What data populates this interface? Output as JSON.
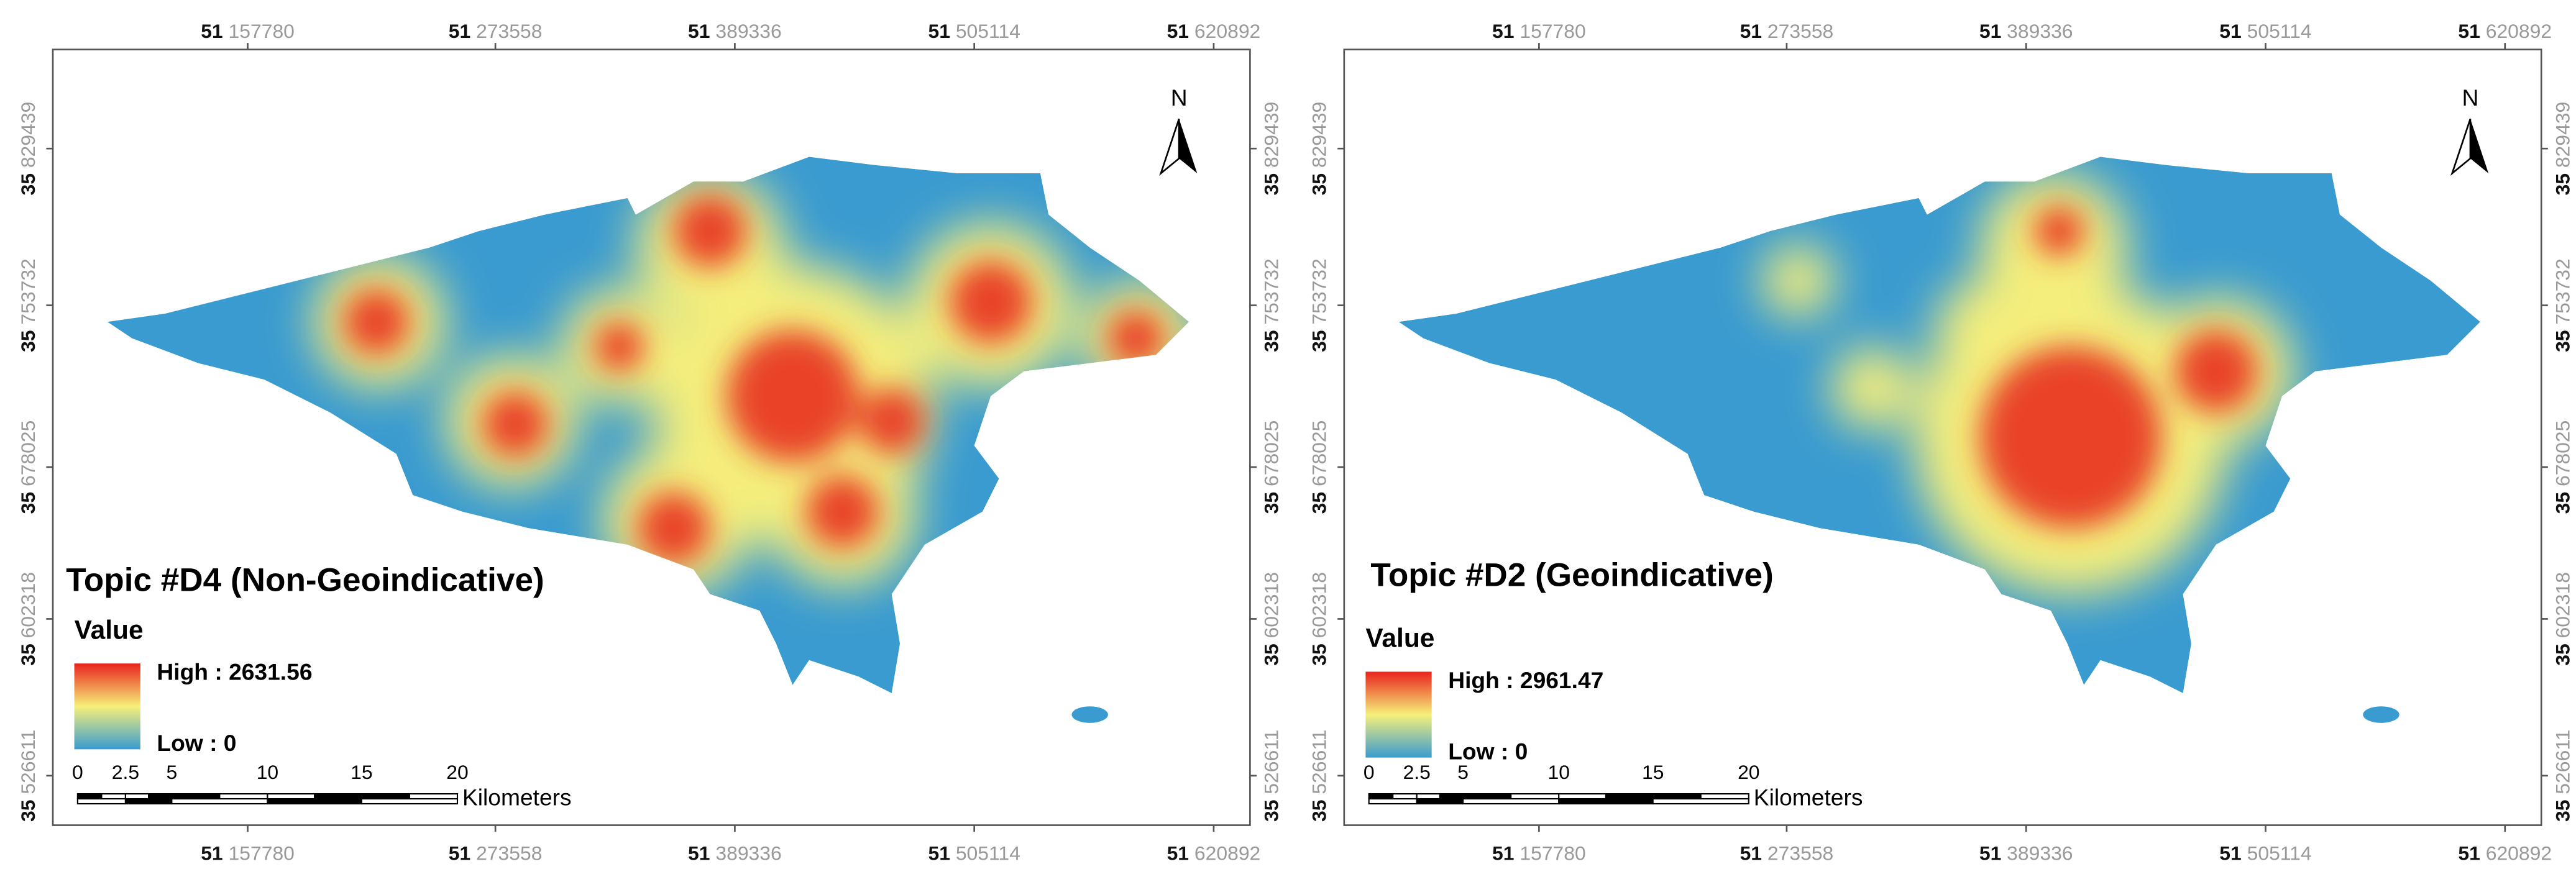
{
  "panels": [
    {
      "title": "Topic #D4 (Non-Geoindicative)",
      "legend": {
        "title": "Value",
        "high": "High : 2631.56",
        "low": "Low : 0"
      },
      "north": "N",
      "x_ticks": [
        {
          "deg": "51",
          "min": "157780"
        },
        {
          "deg": "51",
          "min": "273558"
        },
        {
          "deg": "51",
          "min": "389336"
        },
        {
          "deg": "51",
          "min": "505114"
        },
        {
          "deg": "51",
          "min": "620892"
        }
      ],
      "y_ticks": [
        {
          "deg": "35",
          "min": "829439"
        },
        {
          "deg": "35",
          "min": "753732"
        },
        {
          "deg": "35",
          "min": "678025"
        },
        {
          "deg": "35",
          "min": "602318"
        },
        {
          "deg": "35",
          "min": "526611"
        }
      ],
      "scale_bar": {
        "labels": [
          "0",
          "2.5",
          "5",
          "10",
          "15",
          "20"
        ],
        "unit": "Kilometers"
      }
    },
    {
      "title": "Topic #D2 (Geoindicative)",
      "legend": {
        "title": "Value",
        "high": "High : 2961.47",
        "low": "Low : 0"
      },
      "north": "N",
      "x_ticks": [
        {
          "deg": "51",
          "min": "157780"
        },
        {
          "deg": "51",
          "min": "273558"
        },
        {
          "deg": "51",
          "min": "389336"
        },
        {
          "deg": "51",
          "min": "505114"
        },
        {
          "deg": "51",
          "min": "620892"
        }
      ],
      "y_ticks": [
        {
          "deg": "35",
          "min": "829439"
        },
        {
          "deg": "35",
          "min": "753732"
        },
        {
          "deg": "35",
          "min": "678025"
        },
        {
          "deg": "35",
          "min": "602318"
        },
        {
          "deg": "35",
          "min": "526611"
        }
      ],
      "scale_bar": {
        "labels": [
          "0",
          "2.5",
          "5",
          "10",
          "15",
          "20"
        ],
        "unit": "Kilometers"
      }
    }
  ]
}
